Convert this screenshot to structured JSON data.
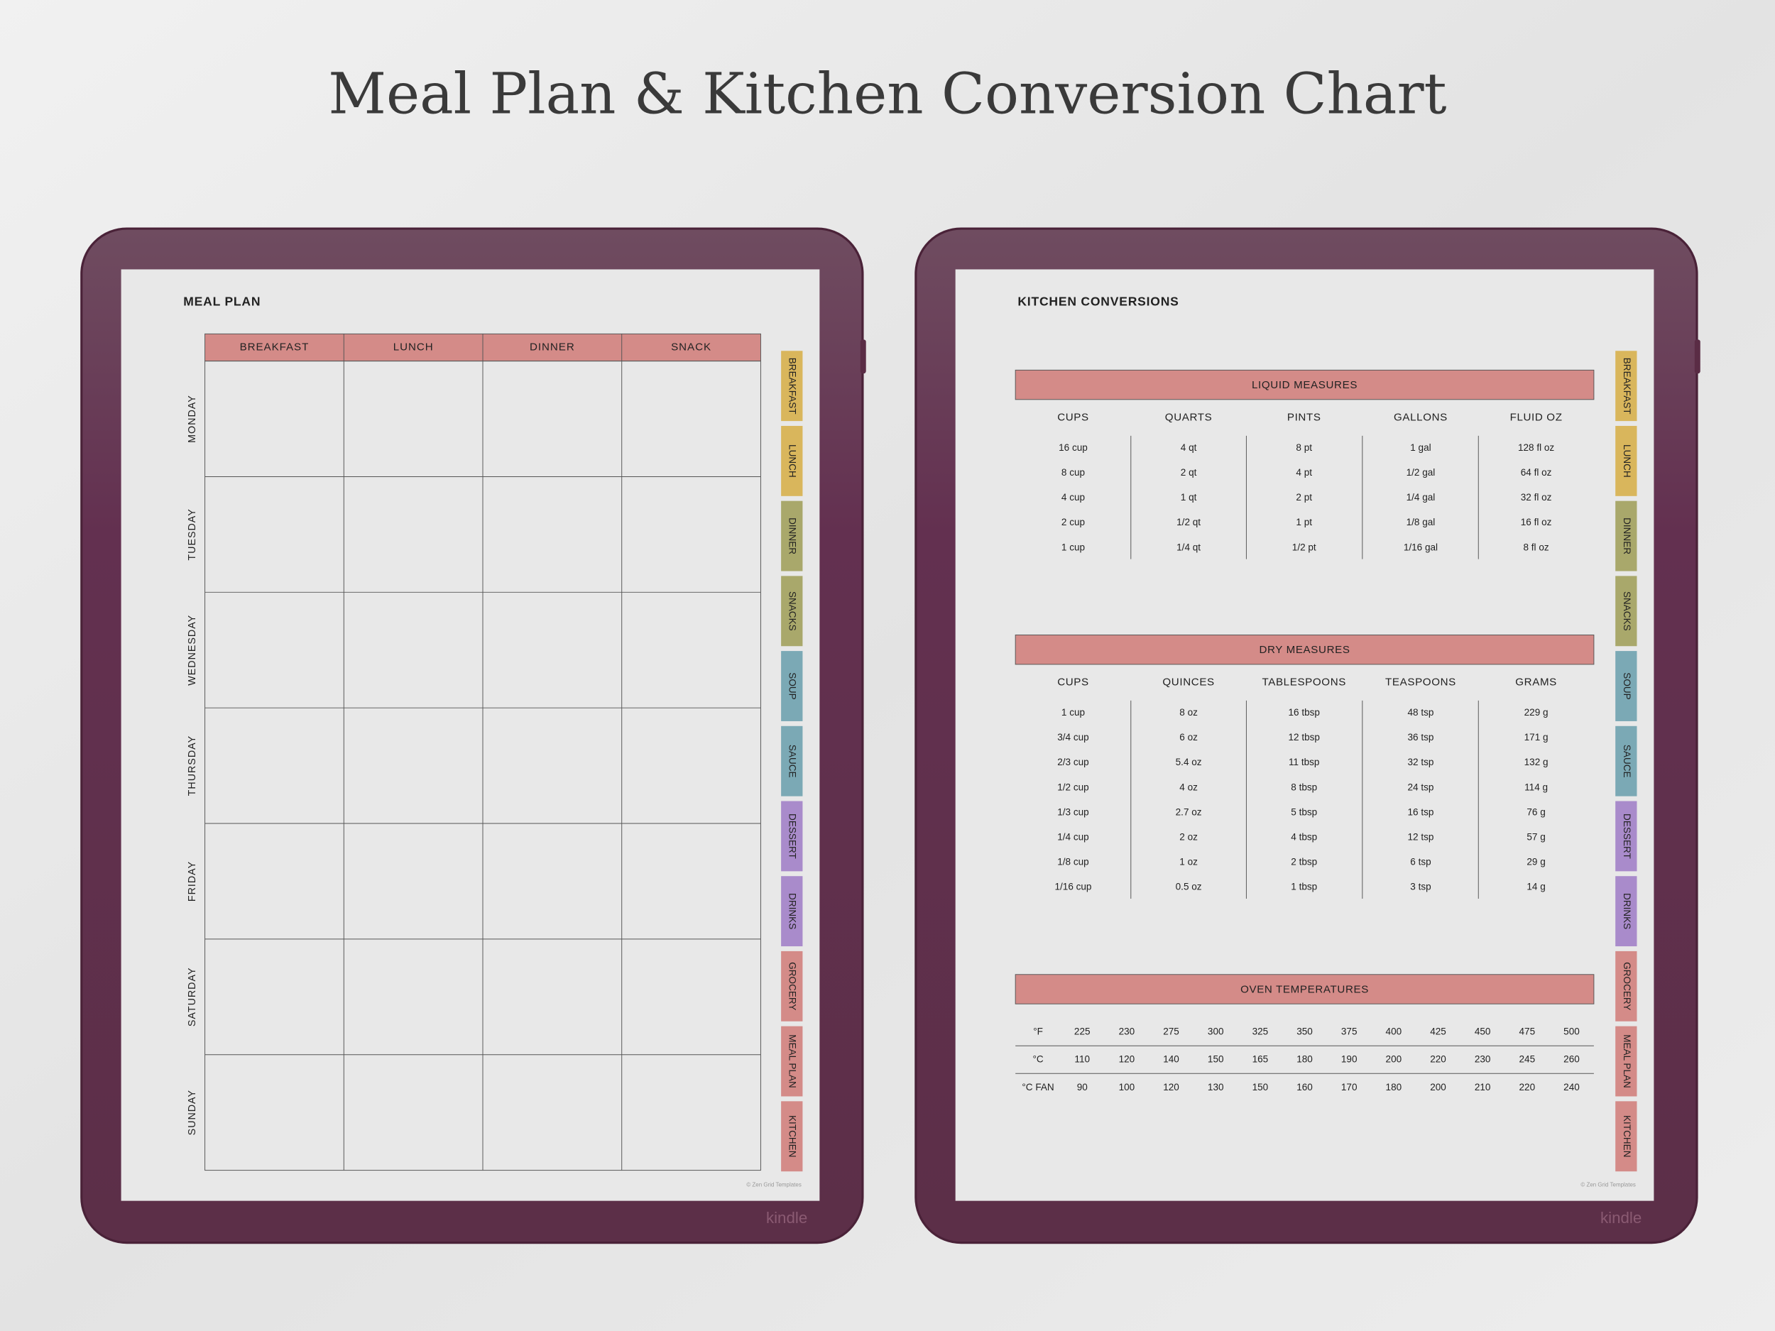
{
  "title": "Meal Plan & Kitchen Conversion Chart",
  "brand": "kindle",
  "copyright": "© Zen Grid Templates",
  "tabs": [
    {
      "label": "BREAKFAST",
      "color": "#d9b65c"
    },
    {
      "label": "LUNCH",
      "color": "#d9b65c"
    },
    {
      "label": "DINNER",
      "color": "#a9a86b"
    },
    {
      "label": "SNACKS",
      "color": "#a9a86b"
    },
    {
      "label": "SOUP",
      "color": "#7ba9b5"
    },
    {
      "label": "SAUCE",
      "color": "#7ba9b5"
    },
    {
      "label": "DESSERT",
      "color": "#a98bcb"
    },
    {
      "label": "DRINKS",
      "color": "#a98bcb"
    },
    {
      "label": "GROCERY",
      "color": "#d48b88"
    },
    {
      "label": "MEAL PLAN",
      "color": "#d48b88"
    },
    {
      "label": "KITCHEN",
      "color": "#d48b88"
    }
  ],
  "meal_plan": {
    "title": "MEAL PLAN",
    "columns": [
      "BREAKFAST",
      "LUNCH",
      "DINNER",
      "SNACK"
    ],
    "days": [
      "MONDAY",
      "TUESDAY",
      "WEDNESDAY",
      "THURSDAY",
      "FRIDAY",
      "SATURDAY",
      "SUNDAY"
    ]
  },
  "kitchen": {
    "title": "KITCHEN CONVERSIONS",
    "liquid": {
      "title": "LIQUID MEASURES",
      "headers": [
        "CUPS",
        "QUARTS",
        "PINTS",
        "GALLONS",
        "FLUID OZ"
      ],
      "rows": [
        [
          "16 cup",
          "4 qt",
          "8 pt",
          "1 gal",
          "128 fl oz"
        ],
        [
          "8 cup",
          "2 qt",
          "4 pt",
          "1/2 gal",
          "64 fl oz"
        ],
        [
          "4 cup",
          "1 qt",
          "2 pt",
          "1/4 gal",
          "32 fl oz"
        ],
        [
          "2 cup",
          "1/2 qt",
          "1 pt",
          "1/8 gal",
          "16 fl oz"
        ],
        [
          "1 cup",
          "1/4 qt",
          "1/2 pt",
          "1/16 gal",
          "8 fl oz"
        ]
      ]
    },
    "dry": {
      "title": "DRY MEASURES",
      "headers": [
        "CUPS",
        "QUINCES",
        "TABLESPOONS",
        "TEASPOONS",
        "GRAMS"
      ],
      "rows": [
        [
          "1 cup",
          "8 oz",
          "16 tbsp",
          "48 tsp",
          "229 g"
        ],
        [
          "3/4 cup",
          "6 oz",
          "12 tbsp",
          "36 tsp",
          "171 g"
        ],
        [
          "2/3 cup",
          "5.4 oz",
          "11 tbsp",
          "32 tsp",
          "132 g"
        ],
        [
          "1/2 cup",
          "4 oz",
          "8 tbsp",
          "24 tsp",
          "114 g"
        ],
        [
          "1/3 cup",
          "2.7 oz",
          "5 tbsp",
          "16 tsp",
          "76 g"
        ],
        [
          "1/4 cup",
          "2 oz",
          "4 tbsp",
          "12 tsp",
          "57 g"
        ],
        [
          "1/8 cup",
          "1 oz",
          "2 tbsp",
          "6 tsp",
          "29 g"
        ],
        [
          "1/16 cup",
          "0.5 oz",
          "1 tbsp",
          "3 tsp",
          "14 g"
        ]
      ]
    },
    "oven": {
      "title": "OVEN TEMPERATURES",
      "rows": [
        {
          "label": "°F",
          "values": [
            225,
            230,
            275,
            300,
            325,
            350,
            375,
            400,
            425,
            450,
            475,
            500
          ]
        },
        {
          "label": "°C",
          "values": [
            110,
            120,
            140,
            150,
            165,
            180,
            190,
            200,
            220,
            230,
            245,
            260
          ]
        },
        {
          "label": "°C FAN",
          "values": [
            90,
            100,
            120,
            130,
            150,
            160,
            170,
            180,
            200,
            210,
            220,
            240
          ]
        }
      ]
    }
  }
}
